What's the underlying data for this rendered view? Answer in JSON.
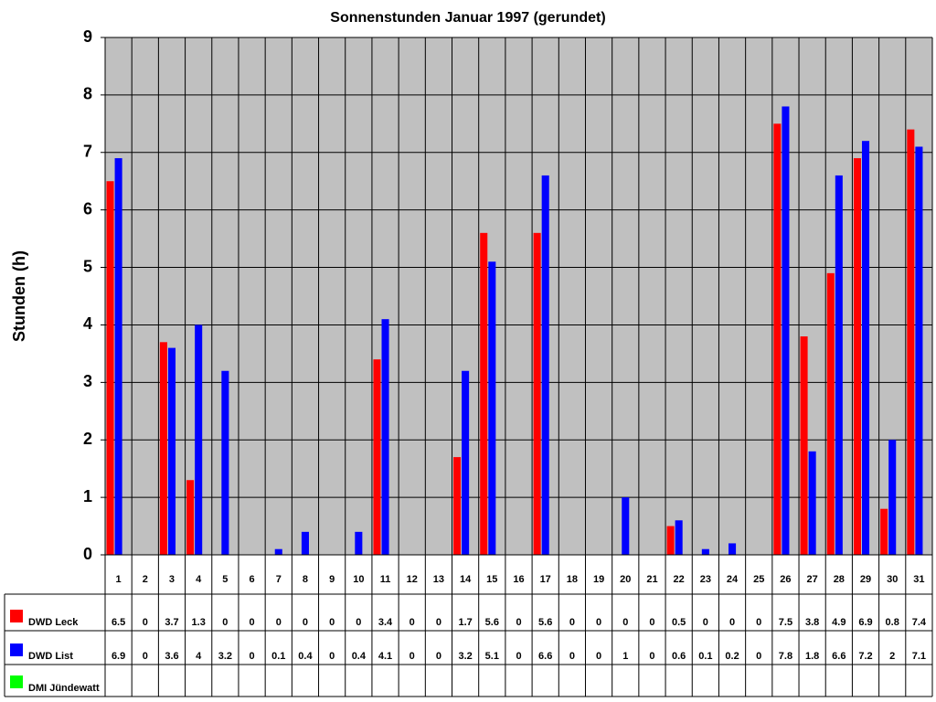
{
  "chart_data": {
    "type": "bar",
    "title": "Sonnenstunden Januar 1997 (gerundet)",
    "y_label": "Stunden (h)",
    "categories": [
      "1",
      "2",
      "3",
      "4",
      "5",
      "6",
      "7",
      "8",
      "9",
      "10",
      "11",
      "12",
      "13",
      "14",
      "15",
      "16",
      "17",
      "18",
      "19",
      "20",
      "21",
      "22",
      "23",
      "24",
      "25",
      "26",
      "27",
      "28",
      "29",
      "30",
      "31"
    ],
    "series": [
      {
        "name": "DWD Leck",
        "color": "#ff0000",
        "values": [
          6.5,
          0,
          3.7,
          1.3,
          0,
          0,
          0,
          0,
          0,
          0,
          3.4,
          0,
          0,
          1.7,
          5.6,
          0,
          5.6,
          0,
          0,
          0,
          0,
          0.5,
          0,
          0,
          0,
          7.5,
          3.8,
          4.9,
          6.9,
          0.8,
          7.4
        ]
      },
      {
        "name": "DWD List",
        "color": "#0000ff",
        "values": [
          6.9,
          0,
          3.6,
          4,
          3.2,
          0,
          0.1,
          0.4,
          0,
          0.4,
          4.1,
          0,
          0,
          3.2,
          5.1,
          0,
          6.6,
          0,
          0,
          1,
          0,
          0.6,
          0.1,
          0.2,
          0,
          7.8,
          1.8,
          6.6,
          7.2,
          2,
          7.1
        ]
      },
      {
        "name": "DMI Jündewatt",
        "color": "#00ff00",
        "values": [
          null,
          null,
          null,
          null,
          null,
          null,
          null,
          null,
          null,
          null,
          null,
          null,
          null,
          null,
          null,
          null,
          null,
          null,
          null,
          null,
          null,
          null,
          null,
          null,
          null,
          null,
          null,
          null,
          null,
          null,
          null
        ]
      }
    ],
    "ylim": [
      0,
      9
    ],
    "yticks": [
      0,
      1,
      2,
      3,
      4,
      5,
      6,
      7,
      8,
      9
    ],
    "grid": true,
    "data_table": true
  }
}
